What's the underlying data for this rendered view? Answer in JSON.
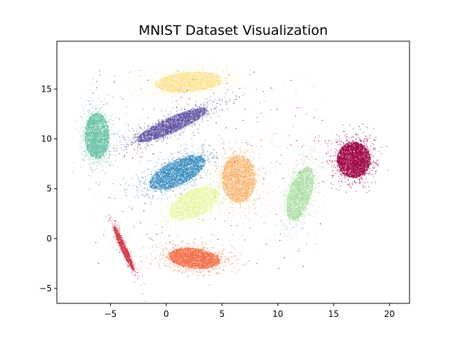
{
  "chart_data": {
    "type": "scatter",
    "title": "MNIST Dataset Visualization",
    "xlabel": "",
    "ylabel": "",
    "xlim": [
      -9.8,
      21.8
    ],
    "ylim": [
      -6.5,
      19.8
    ],
    "xticks": [
      -5,
      0,
      5,
      10,
      15,
      20
    ],
    "yticks": [
      -5,
      0,
      5,
      10,
      15
    ],
    "xtick_labels": [
      "−5",
      "0",
      "5",
      "10",
      "15",
      "20"
    ],
    "ytick_labels": [
      "−5",
      "0",
      "5",
      "10",
      "15"
    ],
    "grid": false,
    "legend": "none",
    "clusters": [
      {
        "color": "#9e0142",
        "center": [
          16.8,
          7.9
        ],
        "spread": [
          1.5,
          1.8
        ],
        "angle": 0,
        "count": 3500
      },
      {
        "color": "#f46d43",
        "center": [
          2.5,
          -2.0
        ],
        "spread": [
          2.3,
          1.0
        ],
        "angle": -8,
        "count": 3000
      },
      {
        "color": "#fee08b",
        "center": [
          2.0,
          15.7
        ],
        "spread": [
          3.0,
          1.0
        ],
        "angle": 5,
        "count": 2800
      },
      {
        "color": "#5e4fa2",
        "center": [
          0.5,
          11.4
        ],
        "spread": [
          3.5,
          0.75
        ],
        "angle": 27,
        "count": 2800
      },
      {
        "color": "#66c2a5",
        "center": [
          -6.2,
          10.3
        ],
        "spread": [
          1.1,
          2.3
        ],
        "angle": 0,
        "count": 2800
      },
      {
        "color": "#3288bd",
        "center": [
          1.0,
          6.6
        ],
        "spread": [
          2.8,
          1.2
        ],
        "angle": 30,
        "count": 3000
      },
      {
        "color": "#fdae61",
        "center": [
          6.5,
          6.0
        ],
        "spread": [
          1.5,
          2.4
        ],
        "angle": 0,
        "count": 2800
      },
      {
        "color": "#e6f598",
        "center": [
          2.5,
          3.5
        ],
        "spread": [
          2.5,
          1.3
        ],
        "angle": 30,
        "count": 2200
      },
      {
        "color": "#abdda4",
        "center": [
          12.0,
          4.5
        ],
        "spread": [
          1.0,
          2.8
        ],
        "angle": -15,
        "count": 2800
      },
      {
        "color": "#d53e4f",
        "center": [
          -3.8,
          -1.0
        ],
        "spread": [
          0.25,
          2.4
        ],
        "angle": 22,
        "count": 1200
      }
    ]
  }
}
